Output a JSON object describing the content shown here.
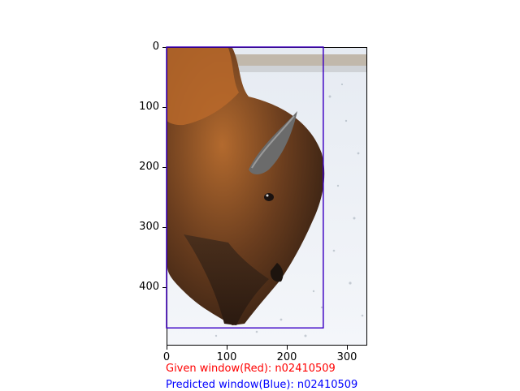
{
  "image": {
    "subject": "bison-head-in-snow",
    "axes": {
      "x_ticks": [
        "0",
        "100",
        "200",
        "300"
      ],
      "y_ticks": [
        "0",
        "100",
        "200",
        "300",
        "400"
      ],
      "x_range": [
        0,
        333
      ],
      "y_range": [
        0,
        500
      ]
    },
    "boxes": {
      "given": {
        "color": "#ff0000",
        "x_range": [
          0,
          260
        ],
        "y_range": [
          0,
          470
        ]
      },
      "predicted": {
        "color": "#0000ff",
        "x_range": [
          0,
          260
        ],
        "y_range": [
          0,
          470
        ]
      }
    }
  },
  "captions": {
    "given": "Given window(Red): n02410509",
    "predicted": "Predicted window(Blue): n02410509"
  },
  "colors": {
    "given": "#ff0000",
    "predicted": "#0000ff"
  }
}
